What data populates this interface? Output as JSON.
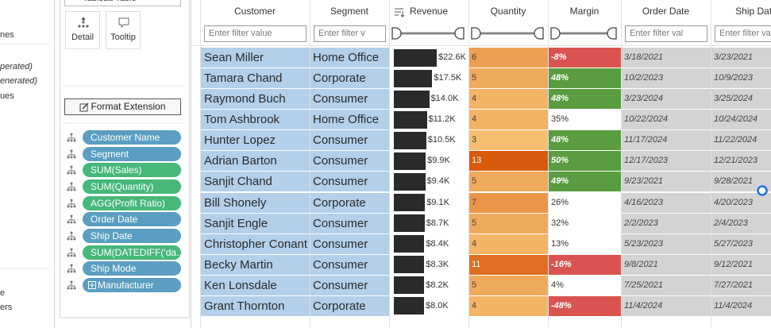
{
  "left_panel": {
    "items": [
      "nes",
      "perated)",
      "enerated)",
      "ues",
      "e",
      "ers"
    ]
  },
  "marks_panel": {
    "dropdown": "Tableau Table",
    "buttons": [
      "Detail",
      "Tooltip"
    ],
    "format_button": "Format Extension",
    "pills": [
      {
        "label": "Customer Name",
        "color": "#5b9ec2"
      },
      {
        "label": "Segment",
        "color": "#5b9ec2"
      },
      {
        "label": "SUM(Sales)",
        "color": "#45b87a"
      },
      {
        "label": "SUM(Quantity)",
        "color": "#45b87a"
      },
      {
        "label": "AGG(Profit Ratio)",
        "color": "#45b87a"
      },
      {
        "label": "Order Date",
        "color": "#5b9ec2"
      },
      {
        "label": "Ship Date",
        "color": "#5b9ec2"
      },
      {
        "label": "SUM(DATEDIFF('da...",
        "color": "#45b87a"
      },
      {
        "label": "Ship Mode",
        "color": "#5b9ec2"
      },
      {
        "label": "Manufacturer",
        "color": "#5b9ec2"
      }
    ]
  },
  "table": {
    "columns": [
      {
        "header": "Customer",
        "filter": "Enter filter value"
      },
      {
        "header": "Segment",
        "filter": "Enter filter v"
      },
      {
        "header": "Revenue"
      },
      {
        "header": "Quantity"
      },
      {
        "header": "Margin"
      },
      {
        "header": "Order Date",
        "filter": "Enter filter val"
      },
      {
        "header": "Ship Date",
        "filter": "Enter filter va"
      }
    ],
    "rows": [
      {
        "customer": "Sean Miller",
        "segment": "Home Office",
        "revenue": 22600,
        "revenue_label": "$22.6K",
        "quantity": 6,
        "margin": -8,
        "margin_label": "-8%",
        "order_date": "3/18/2021",
        "ship_date": "3/23/2021"
      },
      {
        "customer": "Tamara Chand",
        "segment": "Corporate",
        "revenue": 17500,
        "revenue_label": "$17.5K",
        "quantity": 5,
        "margin": 48,
        "margin_label": "48%",
        "order_date": "10/2/2023",
        "ship_date": "10/9/2023"
      },
      {
        "customer": "Raymond Buch",
        "segment": "Consumer",
        "revenue": 14000,
        "revenue_label": "$14.0K",
        "quantity": 4,
        "margin": 48,
        "margin_label": "48%",
        "order_date": "3/23/2024",
        "ship_date": "3/25/2024"
      },
      {
        "customer": "Tom Ashbrook",
        "segment": "Home Office",
        "revenue": 11200,
        "revenue_label": "$11.2K",
        "quantity": 4,
        "margin": 35,
        "margin_label": "35%",
        "order_date": "10/22/2024",
        "ship_date": "10/24/2024"
      },
      {
        "customer": "Hunter Lopez",
        "segment": "Consumer",
        "revenue": 10500,
        "revenue_label": "$10.5K",
        "quantity": 3,
        "margin": 48,
        "margin_label": "48%",
        "order_date": "11/17/2024",
        "ship_date": "11/22/2024"
      },
      {
        "customer": "Adrian Barton",
        "segment": "Consumer",
        "revenue": 9900,
        "revenue_label": "$9.9K",
        "quantity": 13,
        "margin": 50,
        "margin_label": "50%",
        "order_date": "12/17/2023",
        "ship_date": "12/21/2023"
      },
      {
        "customer": "Sanjit Chand",
        "segment": "Consumer",
        "revenue": 9400,
        "revenue_label": "$9.4K",
        "quantity": 5,
        "margin": 49,
        "margin_label": "49%",
        "order_date": "9/23/2021",
        "ship_date": "9/28/2021"
      },
      {
        "customer": "Bill Shonely",
        "segment": "Corporate",
        "revenue": 9100,
        "revenue_label": "$9.1K",
        "quantity": 7,
        "margin": 26,
        "margin_label": "26%",
        "order_date": "4/16/2023",
        "ship_date": "4/20/2023"
      },
      {
        "customer": "Sanjit Engle",
        "segment": "Consumer",
        "revenue": 8700,
        "revenue_label": "$8.7K",
        "quantity": 5,
        "margin": 32,
        "margin_label": "32%",
        "order_date": "2/2/2023",
        "ship_date": "2/4/2023"
      },
      {
        "customer": "Christopher Conant",
        "segment": "Consumer",
        "revenue": 8400,
        "revenue_label": "$8.4K",
        "quantity": 4,
        "margin": 13,
        "margin_label": "13%",
        "order_date": "5/23/2023",
        "ship_date": "5/27/2023"
      },
      {
        "customer": "Becky Martin",
        "segment": "Consumer",
        "revenue": 8300,
        "revenue_label": "$8.3K",
        "quantity": 11,
        "margin": -16,
        "margin_label": "-16%",
        "order_date": "9/8/2021",
        "ship_date": "9/12/2021"
      },
      {
        "customer": "Ken Lonsdale",
        "segment": "Consumer",
        "revenue": 8200,
        "revenue_label": "$8.2K",
        "quantity": 5,
        "margin": 4,
        "margin_label": "4%",
        "order_date": "7/25/2021",
        "ship_date": "7/27/2021"
      },
      {
        "customer": "Grant Thornton",
        "segment": "Corporate",
        "revenue": 8000,
        "revenue_label": "$8.0K",
        "quantity": 4,
        "margin": -48,
        "margin_label": "-48%",
        "order_date": "11/4/2024",
        "ship_date": "11/4/2024"
      }
    ]
  }
}
